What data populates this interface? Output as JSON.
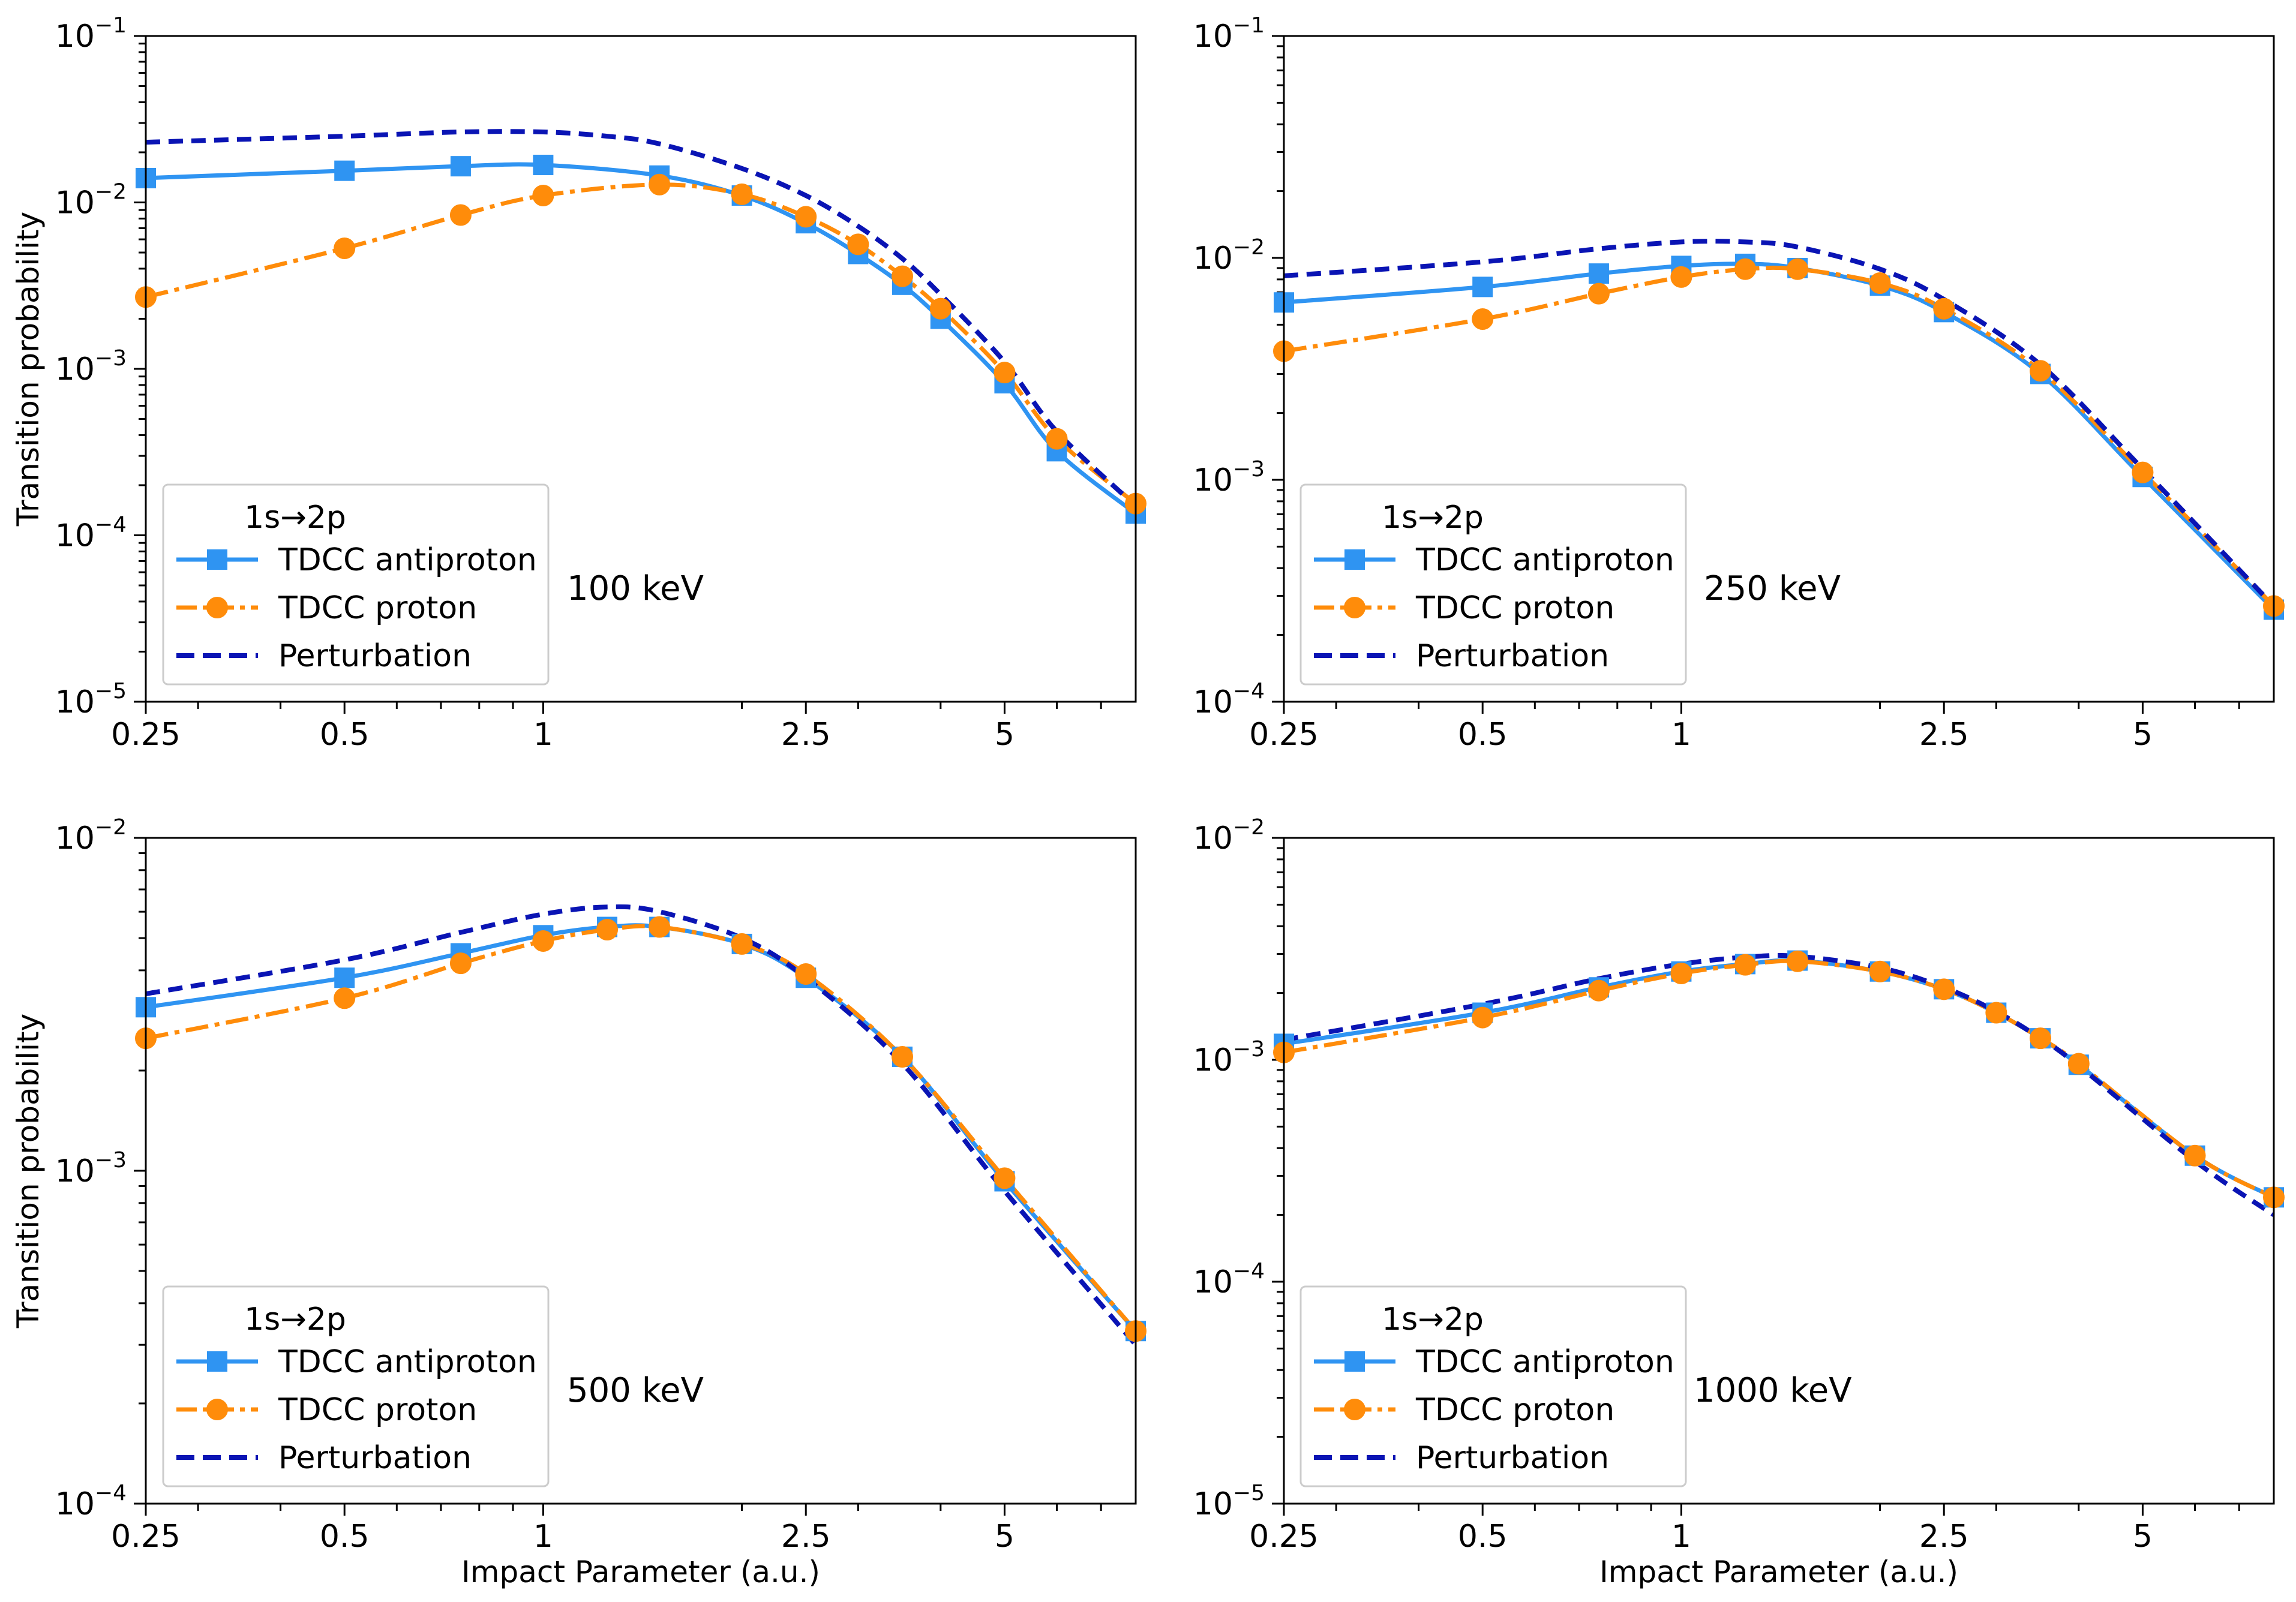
{
  "chart_data": [
    {
      "type": "line",
      "scale": {
        "x": "log",
        "y": "log"
      },
      "annotation": "100 keV",
      "legend_title": "1s→2p",
      "ylabel": "Transition probability",
      "xlabel": "",
      "xlim": [
        0.25,
        7.9
      ],
      "ylim": [
        1e-05,
        0.1
      ],
      "x_ticks": [
        0.25,
        0.5,
        1,
        2.5,
        5
      ],
      "x_tick_labels": [
        "0.25",
        "0.5",
        "1",
        "2.5",
        "5"
      ],
      "y_ticks": [
        1e-05,
        0.0001,
        0.001,
        0.01,
        0.1
      ],
      "y_tick_labels": [
        {
          "base": "10",
          "exp": "−5"
        },
        {
          "base": "10",
          "exp": "−4"
        },
        {
          "base": "10",
          "exp": "−3"
        },
        {
          "base": "10",
          "exp": "−2"
        },
        {
          "base": "10",
          "exp": "−1"
        }
      ],
      "series": [
        {
          "name": "TDCC antiproton",
          "style": "antiproton",
          "x": [
            0.25,
            0.5,
            0.75,
            1.0,
            1.5,
            2.0,
            2.5,
            3.0,
            3.5,
            4.0,
            5.0,
            6.0,
            7.9
          ],
          "y": [
            0.014,
            0.0155,
            0.0165,
            0.0168,
            0.0145,
            0.011,
            0.0075,
            0.0049,
            0.0032,
            0.002,
            0.00082,
            0.00032,
            0.000135
          ]
        },
        {
          "name": "TDCC proton",
          "style": "proton",
          "x": [
            0.25,
            0.5,
            0.75,
            1.0,
            1.5,
            2.0,
            2.5,
            3.0,
            3.5,
            4.0,
            5.0,
            6.0,
            7.9
          ],
          "y": [
            0.0027,
            0.0053,
            0.0084,
            0.011,
            0.0128,
            0.0112,
            0.0082,
            0.0056,
            0.0036,
            0.0023,
            0.00095,
            0.00038,
            0.000155
          ]
        },
        {
          "name": "Perturbation",
          "style": "perturbation",
          "x": [
            0.25,
            0.5,
            0.75,
            1.0,
            1.25,
            1.5,
            2.0,
            2.5,
            3.0,
            3.5,
            4.0,
            5.0,
            6.0,
            7.9
          ],
          "y": [
            0.023,
            0.025,
            0.0265,
            0.0265,
            0.025,
            0.0225,
            0.016,
            0.011,
            0.0072,
            0.0046,
            0.0028,
            0.0011,
            0.00042,
            0.00015
          ]
        }
      ]
    },
    {
      "type": "line",
      "scale": {
        "x": "log",
        "y": "log"
      },
      "annotation": "250 keV",
      "legend_title": "1s→2p",
      "ylabel": "",
      "xlabel": "",
      "xlim": [
        0.25,
        7.9
      ],
      "ylim": [
        0.0001,
        0.1
      ],
      "x_ticks": [
        0.25,
        0.5,
        1,
        2.5,
        5
      ],
      "x_tick_labels": [
        "0.25",
        "0.5",
        "1",
        "2.5",
        "5"
      ],
      "y_ticks": [
        0.0001,
        0.001,
        0.01,
        0.1
      ],
      "y_tick_labels": [
        {
          "base": "10",
          "exp": "−4"
        },
        {
          "base": "10",
          "exp": "−3"
        },
        {
          "base": "10",
          "exp": "−2"
        },
        {
          "base": "10",
          "exp": "−1"
        }
      ],
      "series": [
        {
          "name": "TDCC antiproton",
          "style": "antiproton",
          "x": [
            0.25,
            0.5,
            0.75,
            1.0,
            1.25,
            1.5,
            2.0,
            2.5,
            3.5,
            5.0,
            7.9
          ],
          "y": [
            0.0063,
            0.0074,
            0.0085,
            0.0092,
            0.0094,
            0.009,
            0.0075,
            0.0057,
            0.003,
            0.00103,
            0.00026
          ]
        },
        {
          "name": "TDCC proton",
          "style": "proton",
          "x": [
            0.25,
            0.5,
            0.75,
            1.0,
            1.25,
            1.5,
            2.0,
            2.5,
            3.5,
            5.0,
            7.9
          ],
          "y": [
            0.0038,
            0.0053,
            0.0069,
            0.0082,
            0.0089,
            0.0089,
            0.0077,
            0.0059,
            0.0031,
            0.00108,
            0.00027
          ]
        },
        {
          "name": "Perturbation",
          "style": "perturbation",
          "x": [
            0.25,
            0.5,
            0.75,
            1.0,
            1.25,
            1.5,
            2.0,
            2.5,
            3.5,
            5.0,
            7.9
          ],
          "y": [
            0.0083,
            0.0096,
            0.011,
            0.0118,
            0.0118,
            0.0112,
            0.0089,
            0.0065,
            0.0033,
            0.00112,
            0.00027
          ]
        }
      ]
    },
    {
      "type": "line",
      "scale": {
        "x": "log",
        "y": "log"
      },
      "annotation": "500 keV",
      "legend_title": "1s→2p",
      "ylabel": "Transition probability",
      "xlabel": "Impact Parameter (a.u.)",
      "xlim": [
        0.25,
        7.9
      ],
      "ylim": [
        0.0001,
        0.01
      ],
      "x_ticks": [
        0.25,
        0.5,
        1,
        2.5,
        5
      ],
      "x_tick_labels": [
        "0.25",
        "0.5",
        "1",
        "2.5",
        "5"
      ],
      "y_ticks": [
        0.0001,
        0.001,
        0.01
      ],
      "y_tick_labels": [
        {
          "base": "10",
          "exp": "−4"
        },
        {
          "base": "10",
          "exp": "−3"
        },
        {
          "base": "10",
          "exp": "−2"
        }
      ],
      "series": [
        {
          "name": "TDCC antiproton",
          "style": "antiproton",
          "x": [
            0.25,
            0.5,
            0.75,
            1.0,
            1.25,
            1.5,
            2.0,
            2.5,
            3.5,
            5.0,
            7.9
          ],
          "y": [
            0.0031,
            0.0038,
            0.0045,
            0.0051,
            0.0054,
            0.0054,
            0.0048,
            0.0038,
            0.0022,
            0.00093,
            0.00033
          ]
        },
        {
          "name": "TDCC proton",
          "style": "proton",
          "x": [
            0.25,
            0.5,
            0.75,
            1.0,
            1.25,
            1.5,
            2.0,
            2.5,
            3.5,
            5.0,
            7.9
          ],
          "y": [
            0.0025,
            0.0033,
            0.0042,
            0.0049,
            0.0053,
            0.0054,
            0.0048,
            0.0039,
            0.0022,
            0.00095,
            0.00033
          ]
        },
        {
          "name": "Perturbation",
          "style": "perturbation",
          "x": [
            0.25,
            0.5,
            0.75,
            1.0,
            1.25,
            1.5,
            2.0,
            2.5,
            3.5,
            5.0,
            7.9
          ],
          "y": [
            0.0034,
            0.0043,
            0.0052,
            0.0059,
            0.0062,
            0.006,
            0.005,
            0.0038,
            0.0021,
            0.00087,
            0.0003
          ]
        }
      ]
    },
    {
      "type": "line",
      "scale": {
        "x": "log",
        "y": "log"
      },
      "annotation": "1000 keV",
      "legend_title": "1s→2p",
      "ylabel": "",
      "xlabel": "Impact Parameter (a.u.)",
      "xlim": [
        0.25,
        7.9
      ],
      "ylim": [
        1e-05,
        0.01
      ],
      "x_ticks": [
        0.25,
        0.5,
        1,
        2.5,
        5
      ],
      "x_tick_labels": [
        "0.25",
        "0.5",
        "1",
        "2.5",
        "5"
      ],
      "y_ticks": [
        1e-05,
        0.0001,
        0.001,
        0.01
      ],
      "y_tick_labels": [
        {
          "base": "10",
          "exp": "−5"
        },
        {
          "base": "10",
          "exp": "−4"
        },
        {
          "base": "10",
          "exp": "−3"
        },
        {
          "base": "10",
          "exp": "−2"
        }
      ],
      "series": [
        {
          "name": "TDCC antiproton",
          "style": "antiproton",
          "x": [
            0.25,
            0.5,
            0.75,
            1.0,
            1.25,
            1.5,
            2.0,
            2.5,
            3.0,
            3.5,
            4.0,
            6.0,
            7.9
          ],
          "y": [
            0.00118,
            0.00163,
            0.00212,
            0.0025,
            0.0027,
            0.0028,
            0.0025,
            0.00208,
            0.00163,
            0.00125,
            0.00095,
            0.00037,
            0.00024
          ]
        },
        {
          "name": "TDCC proton",
          "style": "proton",
          "x": [
            0.25,
            0.5,
            0.75,
            1.0,
            1.25,
            1.5,
            2.0,
            2.5,
            3.0,
            3.5,
            4.0,
            6.0,
            7.9
          ],
          "y": [
            0.00108,
            0.00155,
            0.00205,
            0.00245,
            0.00268,
            0.00278,
            0.0025,
            0.00208,
            0.00163,
            0.00125,
            0.00096,
            0.00037,
            0.00024
          ]
        },
        {
          "name": "Perturbation",
          "style": "perturbation",
          "x": [
            0.25,
            0.5,
            0.75,
            1.0,
            1.25,
            1.5,
            2.0,
            2.5,
            3.0,
            3.5,
            4.0,
            6.0,
            7.9
          ],
          "y": [
            0.00123,
            0.00178,
            0.00232,
            0.0027,
            0.0029,
            0.00293,
            0.0026,
            0.00212,
            0.00165,
            0.00125,
            0.00094,
            0.00035,
            0.0002
          ]
        }
      ]
    }
  ],
  "styles": {
    "antiproton": {
      "color": "#2f94f2",
      "marker": "square",
      "dash": "none",
      "width": 7
    },
    "proton": {
      "color": "#ff8c0a",
      "marker": "circle",
      "dash": "38 11 8 11",
      "width": 7
    },
    "perturbation": {
      "color": "#0a14b4",
      "marker": "none",
      "dash": "24 14",
      "width": 8
    }
  }
}
